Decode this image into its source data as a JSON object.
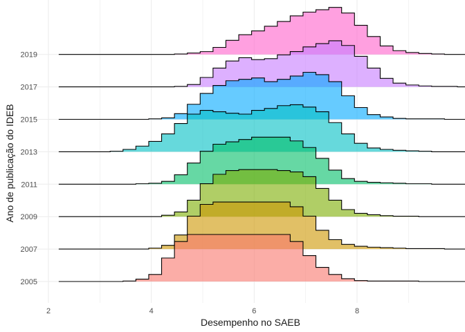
{
  "chart_data": {
    "type": "ridgeline-histogram",
    "xlabel": "Desempenho no SAEB",
    "ylabel": "Ano de publicação do IDEB",
    "xlim": [
      1.95,
      9.7
    ],
    "x_ticks": [
      2,
      4,
      6,
      8
    ],
    "y_ticks": [
      "2005",
      "2007",
      "2009",
      "2011",
      "2013",
      "2015",
      "2017",
      "2019"
    ],
    "grid": "on",
    "legend": "none",
    "bin_width": 0.25,
    "series": [
      {
        "name": "2005",
        "color": "#F8766D",
        "start": 2.2,
        "values": [
          0,
          0,
          0,
          0,
          0,
          0.01,
          0.05,
          0.15,
          0.5,
          0.85,
          1,
          1,
          1,
          1,
          1,
          1,
          1,
          1,
          0.85,
          0.55,
          0.3,
          0.15,
          0.06,
          0.02,
          0.01,
          0.01,
          0.01,
          0.01,
          0,
          0,
          0,
          0,
          0,
          0
        ]
      },
      {
        "name": "2007",
        "color": "#CD9600",
        "start": 2.2,
        "values": [
          0,
          0,
          0,
          0,
          0,
          0,
          0,
          0.02,
          0.08,
          0.3,
          0.7,
          0.95,
          1,
          1,
          1,
          1,
          1,
          1,
          0.9,
          0.7,
          0.4,
          0.2,
          0.1,
          0.06,
          0.04,
          0.03,
          0.02,
          0.01,
          0.01,
          0.01,
          0,
          0,
          0,
          0
        ]
      },
      {
        "name": "2009",
        "color": "#7CAE00",
        "start": 2.2,
        "values": [
          0,
          0,
          0,
          0,
          0,
          0,
          0,
          0,
          0.03,
          0.1,
          0.35,
          0.7,
          0.9,
          0.98,
          1,
          1,
          1,
          0.98,
          0.95,
          0.85,
          0.6,
          0.35,
          0.15,
          0.07,
          0.04,
          0.02,
          0.01,
          0.01,
          0,
          0,
          0,
          0,
          0,
          0
        ]
      },
      {
        "name": "2011",
        "color": "#00BE67",
        "start": 2.2,
        "values": [
          0,
          0,
          0,
          0,
          0,
          0,
          0.01,
          0.02,
          0.06,
          0.2,
          0.45,
          0.7,
          0.85,
          0.9,
          0.95,
          1,
          1,
          1,
          0.92,
          0.78,
          0.55,
          0.3,
          0.12,
          0.06,
          0.04,
          0.03,
          0.02,
          0.01,
          0.01,
          0,
          0,
          0,
          0,
          0
        ]
      },
      {
        "name": "2013",
        "color": "#00BFC4",
        "start": 2.2,
        "values": [
          0,
          0,
          0,
          0,
          0.01,
          0.05,
          0.12,
          0.22,
          0.38,
          0.6,
          0.8,
          0.88,
          0.85,
          0.82,
          0.8,
          0.88,
          0.92,
          0.98,
          1,
          0.95,
          0.85,
          0.62,
          0.38,
          0.18,
          0.08,
          0.05,
          0.03,
          0.02,
          0.01,
          0,
          0,
          0,
          0,
          0
        ]
      },
      {
        "name": "2015",
        "color": "#00A9FF",
        "start": 2.2,
        "values": [
          0,
          0,
          0,
          0,
          0,
          0,
          0,
          0.01,
          0.03,
          0.12,
          0.32,
          0.55,
          0.72,
          0.82,
          0.85,
          0.88,
          0.8,
          0.85,
          0.92,
          1,
          0.95,
          0.8,
          0.5,
          0.25,
          0.1,
          0.05,
          0.02,
          0.01,
          0.01,
          0.01,
          0,
          0,
          0,
          0
        ]
      },
      {
        "name": "2017",
        "color": "#C77CFF",
        "start": 2.2,
        "values": [
          0,
          0,
          0,
          0,
          0,
          0,
          0,
          0,
          0,
          0.01,
          0.05,
          0.2,
          0.4,
          0.55,
          0.62,
          0.58,
          0.6,
          0.68,
          0.75,
          0.85,
          0.92,
          0.98,
          0.88,
          0.65,
          0.4,
          0.18,
          0.08,
          0.04,
          0.02,
          0.01,
          0.01,
          0,
          0,
          0
        ]
      },
      {
        "name": "2019",
        "color": "#FF61CC",
        "start": 2.2,
        "values": [
          0,
          0,
          0,
          0,
          0,
          0,
          0,
          0,
          0,
          0.01,
          0.03,
          0.06,
          0.15,
          0.3,
          0.42,
          0.5,
          0.6,
          0.7,
          0.82,
          0.9,
          0.95,
          1,
          0.88,
          0.62,
          0.38,
          0.18,
          0.08,
          0.04,
          0.02,
          0.01,
          0,
          0,
          0,
          0
        ]
      }
    ]
  }
}
